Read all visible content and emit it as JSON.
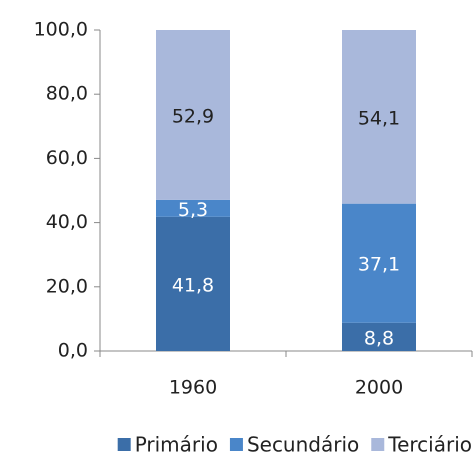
{
  "chart_data": {
    "type": "stacked_bar",
    "categories": [
      "1960",
      "2000"
    ],
    "series": [
      {
        "name": "Primário",
        "color": "#3b6ea8",
        "values": [
          41.8,
          8.8
        ],
        "value_labels": [
          "41,8",
          "8,8"
        ]
      },
      {
        "name": "Secundário",
        "color": "#4a86c9",
        "values": [
          5.3,
          37.1
        ],
        "value_labels": [
          "5,3",
          "37,1"
        ]
      },
      {
        "name": "Terciário",
        "color": "#a9b8db",
        "values": [
          52.9,
          54.1
        ],
        "value_labels": [
          "52,9",
          "54,1"
        ]
      }
    ],
    "ylim": [
      0,
      100
    ],
    "yticks": [
      {
        "value": 0,
        "label": "0,0"
      },
      {
        "value": 20,
        "label": "20,0"
      },
      {
        "value": 40,
        "label": "40,0"
      },
      {
        "value": 60,
        "label": "60,0"
      },
      {
        "value": 80,
        "label": "80,0"
      },
      {
        "value": 100,
        "label": "100,0"
      }
    ],
    "legend": "bottom"
  }
}
